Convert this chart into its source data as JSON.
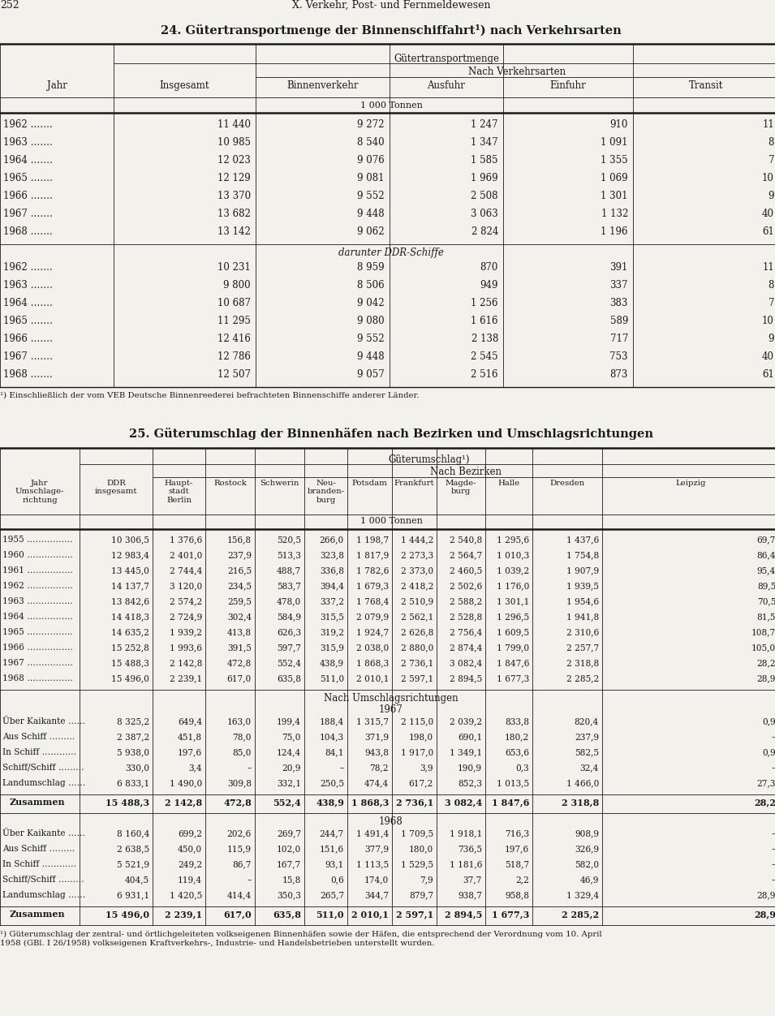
{
  "page_num": "252",
  "header": "X. Verkehr, Post- und Fernmeldewesen",
  "table1_title": "24. Gütertransportmenge der Binnenschiffahrt¹) nach Verkehrsarten",
  "table1_subheader1": "Gütertransportmenge",
  "table1_subheader2": "Nach Verkehrsarten",
  "table1_unit": "1 000 Tonnen",
  "table1_section1_rows": [
    [
      "1962 …….",
      "11 440",
      "9 272",
      "1 247",
      "910",
      "11"
    ],
    [
      "1963 …….",
      "10 985",
      "8 540",
      "1 347",
      "1 091",
      "8"
    ],
    [
      "1964 …….",
      "12 023",
      "9 076",
      "1 585",
      "1 355",
      "7"
    ],
    [
      "1965 …….",
      "12 129",
      "9 081",
      "1 969",
      "1 069",
      "10"
    ],
    [
      "1966 …….",
      "13 370",
      "9 552",
      "2 508",
      "1 301",
      "9"
    ],
    [
      "1967 …….",
      "13 682",
      "9 448",
      "3 063",
      "1 132",
      "40"
    ],
    [
      "1968 …….",
      "13 142",
      "9 062",
      "2 824",
      "1 196",
      "61"
    ]
  ],
  "table1_section2_label": "darunter DDR-Schiffe",
  "table1_section2_rows": [
    [
      "1962 …….",
      "10 231",
      "8 959",
      "870",
      "391",
      "11"
    ],
    [
      "1963 …….",
      "9 800",
      "8 506",
      "949",
      "337",
      "8"
    ],
    [
      "1964 …….",
      "10 687",
      "9 042",
      "1 256",
      "383",
      "7"
    ],
    [
      "1965 …….",
      "11 295",
      "9 080",
      "1 616",
      "589",
      "10"
    ],
    [
      "1966 …….",
      "12 416",
      "9 552",
      "2 138",
      "717",
      "9"
    ],
    [
      "1967 …….",
      "12 786",
      "9 448",
      "2 545",
      "753",
      "40"
    ],
    [
      "1968 …….",
      "12 507",
      "9 057",
      "2 516",
      "873",
      "61"
    ]
  ],
  "table1_footnote": "¹) Einschließlich der vom VEB Deutsche Binnenreederei befrachteten Binnenschiffe anderer Länder.",
  "table2_title": "25. Güterumschlag der Binnenhäfen nach Bezirken und Umschlagsrichtungen",
  "table2_subheader1": "Güterumschlag¹)",
  "table2_subheader2": "Nach Bezirken",
  "table2_unit": "1 000 Tonnen",
  "table2_section1_rows": [
    [
      "1955 …………….",
      "10 306,5",
      "1 376,6",
      "156,8",
      "520,5",
      "266,0",
      "1 198,7",
      "1 444,2",
      "2 540,8",
      "1 295,6",
      "1 437,6",
      "69,7"
    ],
    [
      "1960 …………….",
      "12 983,4",
      "2 401,0",
      "237,9",
      "513,3",
      "323,8",
      "1 817,9",
      "2 273,3",
      "2 564,7",
      "1 010,3",
      "1 754,8",
      "86,4"
    ],
    [
      "1961 …………….",
      "13 445,0",
      "2 744,4",
      "216,5",
      "488,7",
      "336,8",
      "1 782,6",
      "2 373,0",
      "2 460,5",
      "1 039,2",
      "1 907,9",
      "95,4"
    ],
    [
      "1962 …………….",
      "14 137,7",
      "3 120,0",
      "234,5",
      "583,7",
      "394,4",
      "1 679,3",
      "2 418,2",
      "2 502,6",
      "1 176,0",
      "1 939,5",
      "89,5"
    ],
    [
      "1963 …………….",
      "13 842,6",
      "2 574,2",
      "259,5",
      "478,0",
      "337,2",
      "1 768,4",
      "2 510,9",
      "2 588,2",
      "1 301,1",
      "1 954,6",
      "70,5"
    ],
    [
      "1964 …………….",
      "14 418,3",
      "2 724,9",
      "302,4",
      "584,9",
      "315,5",
      "2 079,9",
      "2 562,1",
      "2 528,8",
      "1 296,5",
      "1 941,8",
      "81,5"
    ],
    [
      "1965 …………….",
      "14 635,2",
      "1 939,2",
      "413,8",
      "626,3",
      "319,2",
      "1 924,7",
      "2 626,8",
      "2 756,4",
      "1 609,5",
      "2 310,6",
      "108,7"
    ],
    [
      "1966 …………….",
      "15 252,8",
      "1 993,6",
      "391,5",
      "597,7",
      "315,9",
      "2 038,0",
      "2 880,0",
      "2 874,4",
      "1 799,0",
      "2 257,7",
      "105,0"
    ],
    [
      "1967 …………….",
      "15 488,3",
      "2 142,8",
      "472,8",
      "552,4",
      "438,9",
      "1 868,3",
      "2 736,1",
      "3 082,4",
      "1 847,6",
      "2 318,8",
      "28,2"
    ],
    [
      "1968 …………….",
      "15 496,0",
      "2 239,1",
      "617,0",
      "635,8",
      "511,0",
      "2 010,1",
      "2 597,1",
      "2 894,5",
      "1 677,3",
      "2 285,2",
      "28,9"
    ]
  ],
  "table2_nach_label": "Nach Umschlagsrichtungen",
  "table2_1967_label": "1967",
  "table2_section2_rows": [
    [
      "Über Kaikante ……",
      "8 325,2",
      "649,4",
      "163,0",
      "199,4",
      "188,4",
      "1 315,7",
      "2 115,0",
      "2 039,2",
      "833,8",
      "820,4",
      "0,9"
    ],
    [
      "Aus Schiff ………",
      "2 387,2",
      "451,8",
      "78,0",
      "75,0",
      "104,3",
      "371,9",
      "198,0",
      "690,1",
      "180,2",
      "237,9",
      "–"
    ],
    [
      "In Schiff …………",
      "5 938,0",
      "197,6",
      "85,0",
      "124,4",
      "84,1",
      "943,8",
      "1 917,0",
      "1 349,1",
      "653,6",
      "582,5",
      "0,9"
    ],
    [
      "Schiff/Schiff ………",
      "330,0",
      "3,4",
      "–",
      "20,9",
      "–",
      "78,2",
      "3,9",
      "190,9",
      "0,3",
      "32,4",
      "–"
    ],
    [
      "Landumschlag ……",
      "6 833,1",
      "1 490,0",
      "309,8",
      "332,1",
      "250,5",
      "474,4",
      "617,2",
      "852,3",
      "1 013,5",
      "1 466,0",
      "27,3"
    ]
  ],
  "table2_zusammen1": [
    "Zusammen",
    "15 488,3",
    "2 142,8",
    "472,8",
    "552,4",
    "438,9",
    "1 868,3",
    "2 736,1",
    "3 082,4",
    "1 847,6",
    "2 318,8",
    "28,2"
  ],
  "table2_1968_label": "1968",
  "table2_section3_rows": [
    [
      "Über Kaikante ……",
      "8 160,4",
      "699,2",
      "202,6",
      "269,7",
      "244,7",
      "1 491,4",
      "1 709,5",
      "1 918,1",
      "716,3",
      "908,9",
      "–"
    ],
    [
      "Aus Schiff ………",
      "2 638,5",
      "450,0",
      "115,9",
      "102,0",
      "151,6",
      "377,9",
      "180,0",
      "736,5",
      "197,6",
      "326,9",
      "–"
    ],
    [
      "In Schiff …………",
      "5 521,9",
      "249,2",
      "86,7",
      "167,7",
      "93,1",
      "1 113,5",
      "1 529,5",
      "1 181,6",
      "518,7",
      "582,0",
      "–"
    ],
    [
      "Schiff/Schiff ………",
      "404,5",
      "119,4",
      "–",
      "15,8",
      "0,6",
      "174,0",
      "7,9",
      "37,7",
      "2,2",
      "46,9",
      "–"
    ],
    [
      "Landumschlag ……",
      "6 931,1",
      "1 420,5",
      "414,4",
      "350,3",
      "265,7",
      "344,7",
      "879,7",
      "938,7",
      "958,8",
      "1 329,4",
      "28,9"
    ]
  ],
  "table2_zusammen2": [
    "Zusammen",
    "15 496,0",
    "2 239,1",
    "617,0",
    "635,8",
    "511,0",
    "2 010,1",
    "2 597,1",
    "2 894,5",
    "1 677,3",
    "2 285,2",
    "28,9"
  ],
  "table2_footnote1": "¹) Güterumschlag der zentral- und örtlichgeleiteten volkseigenen Binnenhäfen sowie der Häfen, die entsprechend der Verordnung vom 10. April",
  "table2_footnote2": "1958 (GBl. I 26/1958) volkseigenen Kraftverkehrs-, Industrie- und Handelsbetrieben unterstellt wurden.",
  "bg_color": "#f2f1ec",
  "text_color": "#1a1a1a"
}
